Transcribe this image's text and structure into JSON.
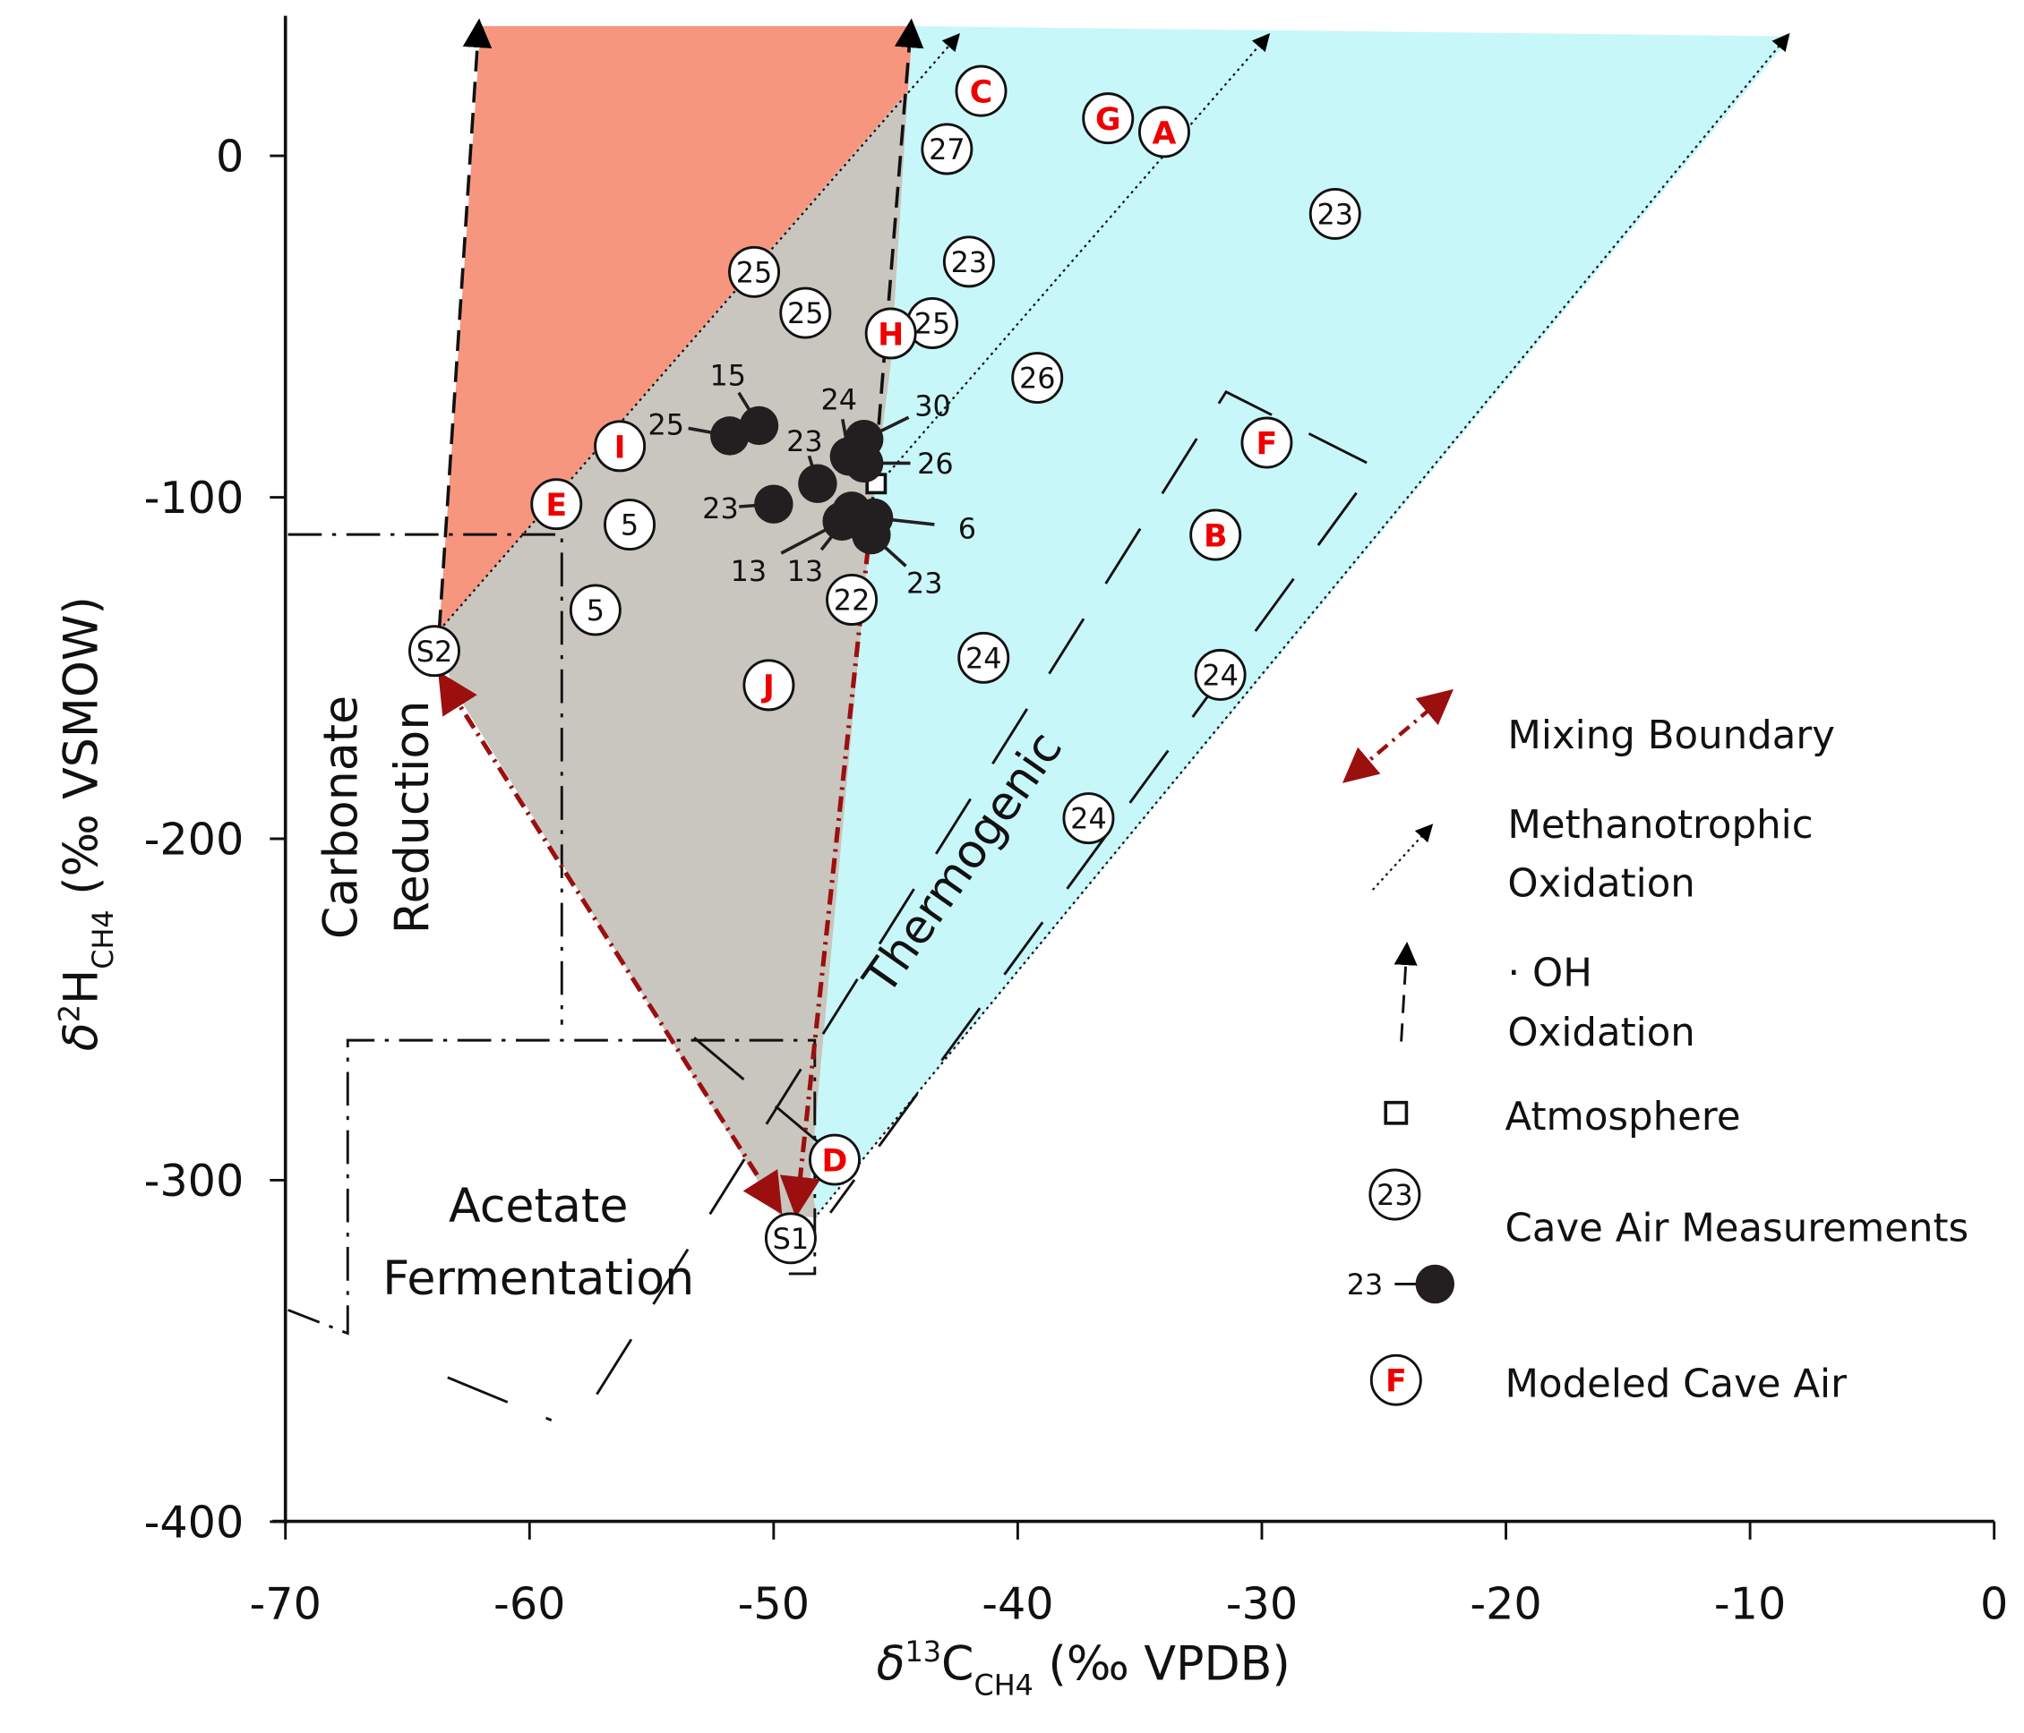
{
  "chart_data": {
    "type": "scatter",
    "xlabel": {
      "main": "δ",
      "sup": "13",
      "base": "C",
      "sub": "CH4",
      "tail": " (‰ VPDB)"
    },
    "ylabel": {
      "main": "δ",
      "sup": "2",
      "base": "H",
      "sub": "CH4",
      "tail": " (‰ VSMOW)"
    },
    "xlim": [
      -70,
      0
    ],
    "ylim": [
      -400,
      38
    ],
    "xticks": [
      -70,
      -60,
      -50,
      -40,
      -30,
      -20,
      -10,
      0
    ],
    "yticks": [
      0,
      -100,
      -200,
      -300,
      -400
    ],
    "colors": {
      "carbonate_field": "#f7967f",
      "mixed_field": "#c8c6be",
      "thermogenic_field": "#c8f7fa",
      "mixing_boundary": "#9b0f0f",
      "modeled_label": "#ff0000",
      "cave_dot": "#231f20"
    },
    "fields": {
      "carbonate": [
        [
          -62.0,
          38
        ],
        [
          -44.3,
          38
        ],
        [
          -44.5,
          19
        ],
        [
          -63.7,
          -139
        ]
      ],
      "mixed": [
        [
          -63.7,
          -139
        ],
        [
          -44.5,
          19
        ],
        [
          -45.2,
          -61
        ],
        [
          -46.0,
          -106
        ],
        [
          -48.5,
          -300
        ],
        [
          -48.2,
          -311
        ],
        [
          -49.8,
          -310
        ],
        [
          -63.2,
          -155
        ]
      ],
      "thermogenic": [
        [
          -44.3,
          38
        ],
        [
          -8.3,
          35
        ],
        [
          -48.2,
          -310
        ],
        [
          -48.5,
          -300
        ],
        [
          -46.0,
          -106
        ],
        [
          -45.2,
          -61
        ],
        [
          -44.5,
          19
        ]
      ]
    },
    "region_labels": {
      "carbonate": [
        "Carbonate",
        "Reduction"
      ],
      "thermogenic": "Thermogenic",
      "acetate": [
        "Acetate",
        "Fermentation"
      ]
    },
    "methanotrophic_oxidation_lines": [
      [
        [
          -63.7,
          -139
        ],
        [
          -42.6,
          34
        ]
      ],
      [
        [
          -45.8,
          -97
        ],
        [
          -29.9,
          34
        ]
      ],
      [
        [
          -48.2,
          -310
        ],
        [
          -8.6,
          34
        ]
      ]
    ],
    "oh_oxidation_lines": [
      [
        [
          -63.7,
          -139
        ],
        [
          -62.1,
          36
        ]
      ],
      [
        [
          -46.0,
          -106
        ],
        [
          -44.4,
          36
        ]
      ]
    ],
    "mixing_boundaries": [
      {
        "from": [
          -63.3,
          -156
        ],
        "to": [
          -50.1,
          -305
        ],
        "both_ends": true
      },
      {
        "from": [
          -46.0,
          -106
        ],
        "to": [
          -49.0,
          -305
        ],
        "both_ends": false
      }
    ],
    "atmosphere": {
      "x": -45.8,
      "y": -96
    },
    "cave_air_measurements_open": [
      {
        "label": "27",
        "x": -42.9,
        "y": 2
      },
      {
        "label": "23",
        "x": -27.0,
        "y": -17
      },
      {
        "label": "23",
        "x": -42.0,
        "y": -31
      },
      {
        "label": "25",
        "x": -50.8,
        "y": -34
      },
      {
        "label": "25",
        "x": -48.7,
        "y": -46
      },
      {
        "label": "25",
        "x": -43.5,
        "y": -49
      },
      {
        "label": "26",
        "x": -39.2,
        "y": -65
      },
      {
        "label": "5",
        "x": -55.9,
        "y": -108
      },
      {
        "label": "5",
        "x": -57.3,
        "y": -133
      },
      {
        "label": "22",
        "x": -46.8,
        "y": -130
      },
      {
        "label": "24",
        "x": -41.4,
        "y": -147
      },
      {
        "label": "24",
        "x": -31.7,
        "y": -152
      },
      {
        "label": "24",
        "x": -37.1,
        "y": -194
      },
      {
        "label": "S2",
        "x": -63.9,
        "y": -145
      },
      {
        "label": "S1",
        "x": -49.3,
        "y": -317
      }
    ],
    "cave_air_measurements_filled": [
      {
        "label": "15",
        "x": -50.6,
        "y": -79
      },
      {
        "label": "25",
        "x": -51.8,
        "y": -82
      },
      {
        "label": "23",
        "x": -50.0,
        "y": -102
      },
      {
        "label": "23",
        "x": -48.2,
        "y": -96
      },
      {
        "label": "24",
        "x": -46.9,
        "y": -88
      },
      {
        "label": "30",
        "x": -46.3,
        "y": -83
      },
      {
        "label": "26",
        "x": -46.3,
        "y": -90
      },
      {
        "label": "13",
        "x": -47.2,
        "y": -107
      },
      {
        "label": "13",
        "x": -46.8,
        "y": -104
      },
      {
        "label": "6",
        "x": -45.9,
        "y": -106
      },
      {
        "label": "23",
        "x": -46.0,
        "y": -111
      }
    ],
    "modeled_cave_air": [
      {
        "label": "C",
        "x": -41.5,
        "y": 19
      },
      {
        "label": "G",
        "x": -36.3,
        "y": 11
      },
      {
        "label": "A",
        "x": -34.0,
        "y": 7
      },
      {
        "label": "H",
        "x": -45.2,
        "y": -52
      },
      {
        "label": "I",
        "x": -56.3,
        "y": -85
      },
      {
        "label": "E",
        "x": -58.9,
        "y": -102
      },
      {
        "label": "F",
        "x": -29.8,
        "y": -84
      },
      {
        "label": "B",
        "x": -31.9,
        "y": -111
      },
      {
        "label": "J",
        "x": -50.2,
        "y": -155
      },
      {
        "label": "D",
        "x": -47.5,
        "y": -294
      }
    ],
    "legend": {
      "placement": "right",
      "mixing": "Mixing Boundary",
      "methanotrophic": [
        "Methanotrophic",
        "Oxidation"
      ],
      "oh": [
        "· OH",
        "Oxidation"
      ],
      "atmosphere": "Atmosphere",
      "cave_air": "Cave Air Measurements",
      "cave_air_open_sample": "23",
      "cave_air_filled_sample": "23",
      "modeled": "Modeled Cave Air",
      "modeled_sample": "F"
    }
  }
}
